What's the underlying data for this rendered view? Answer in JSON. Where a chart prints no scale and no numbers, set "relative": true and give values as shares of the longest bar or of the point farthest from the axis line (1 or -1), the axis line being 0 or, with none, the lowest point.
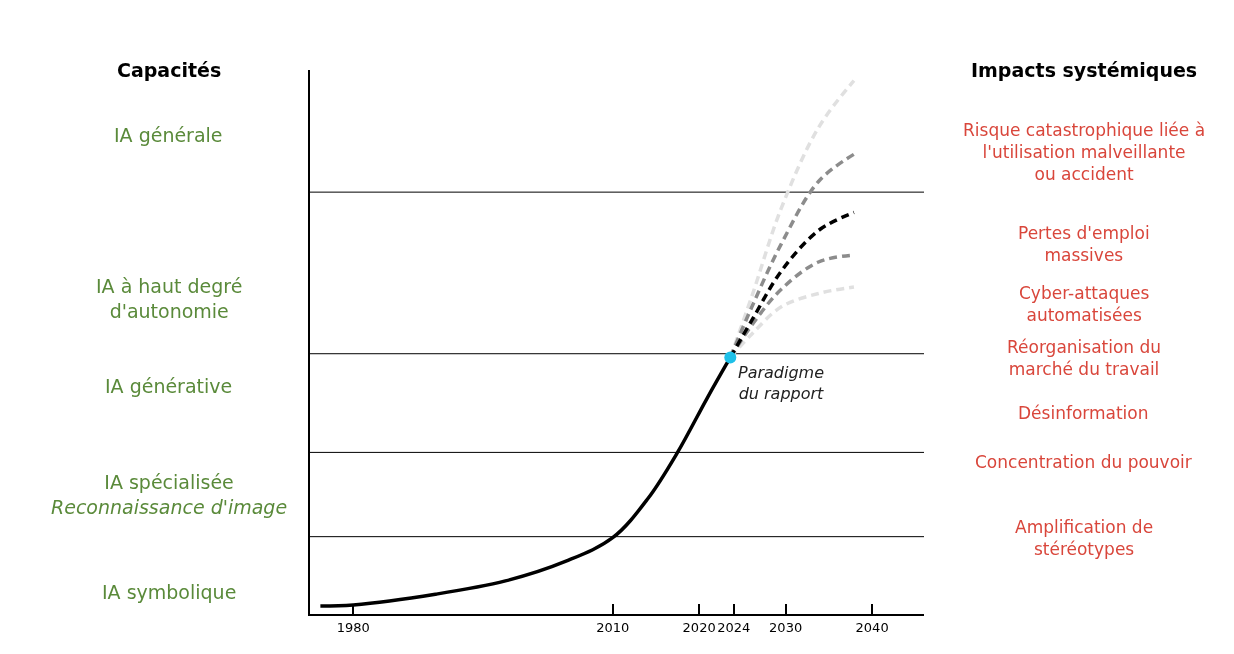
{
  "chart_data": {
    "type": "line",
    "relative": true,
    "marker": "none",
    "xlim": [
      1975,
      2046
    ],
    "xticks": [
      1980,
      2010,
      2020,
      2024,
      2030,
      2040
    ],
    "series": [
      {
        "color": "#000000",
        "line_style": "solid",
        "x": [
          1976.2,
          1980,
          1989.5,
          1997.6,
          2004.6,
          2010,
          2014.1,
          2017.5,
          2020.9,
          2023.6
        ],
        "values": [
          0.015,
          0.017,
          0.037,
          0.062,
          0.099,
          0.143,
          0.217,
          0.303,
          0.404,
          0.481
        ]
      },
      {
        "color": "#e0e0e0",
        "line_style": "dashed",
        "x": [
          2023.6,
          2026.1,
          2029.5,
          2033.8,
          2037.9
        ],
        "values": [
          0.481,
          0.596,
          0.761,
          0.912,
          1.0
        ]
      },
      {
        "color": "#e0e0e0",
        "line_style": "dashed",
        "x": [
          2023.6,
          2026.1,
          2029.5,
          2033.8,
          2037.9
        ],
        "values": [
          0.481,
          0.525,
          0.576,
          0.601,
          0.613
        ]
      },
      {
        "color": "#8c8c8c",
        "line_style": "dashed",
        "x": [
          2023.6,
          2026.1,
          2029.5,
          2033.8,
          2037.9
        ],
        "values": [
          0.481,
          0.576,
          0.694,
          0.811,
          0.862
        ]
      },
      {
        "color": "#8c8c8c",
        "line_style": "dashed",
        "x": [
          2023.6,
          2026.1,
          2029.5,
          2033.8,
          2037.9
        ],
        "values": [
          0.481,
          0.542,
          0.609,
          0.66,
          0.673
        ]
      },
      {
        "color": "#000000",
        "line_style": "dashed",
        "x": [
          2023.6,
          2026.1,
          2029.5,
          2033.8,
          2037.9
        ],
        "values": [
          0.481,
          0.551,
          0.643,
          0.719,
          0.753
        ]
      },
      {
        "type": "scatter",
        "marker": "circle",
        "color": "#1ec0e8",
        "x": [
          2023.6
        ],
        "values": [
          0.481
        ]
      }
    ],
    "ref_lines": [
      {
        "axis": "y",
        "value": 0.145,
        "color": "#000000"
      },
      {
        "axis": "y",
        "value": 0.303,
        "color": "#000000"
      },
      {
        "axis": "y",
        "value": 0.488,
        "color": "#000000"
      },
      {
        "axis": "y",
        "value": 0.791,
        "color": "#000000"
      }
    ],
    "annotations": [
      "Capacités",
      "IA générale",
      "IA à haut degré\nd'autonomie",
      "IA générative",
      "IA spécialisée\nReconnaissance d'image",
      "IA symbolique",
      "Impacts systémiques",
      "Risque catastrophique liée à\nl'utilisation malveillante\nou accident",
      "Pertes d'emploi\nmassives",
      "Cyber-attaques\nautomatisées",
      "Réorganisation du\nmarché du travail",
      "Désinformation",
      "Concentration du pouvoir",
      "Amplification de\nstéréotypes",
      {
        "text": "Paradigme\ndu rapport",
        "x": 2023.6,
        "y": 0.481
      }
    ]
  }
}
